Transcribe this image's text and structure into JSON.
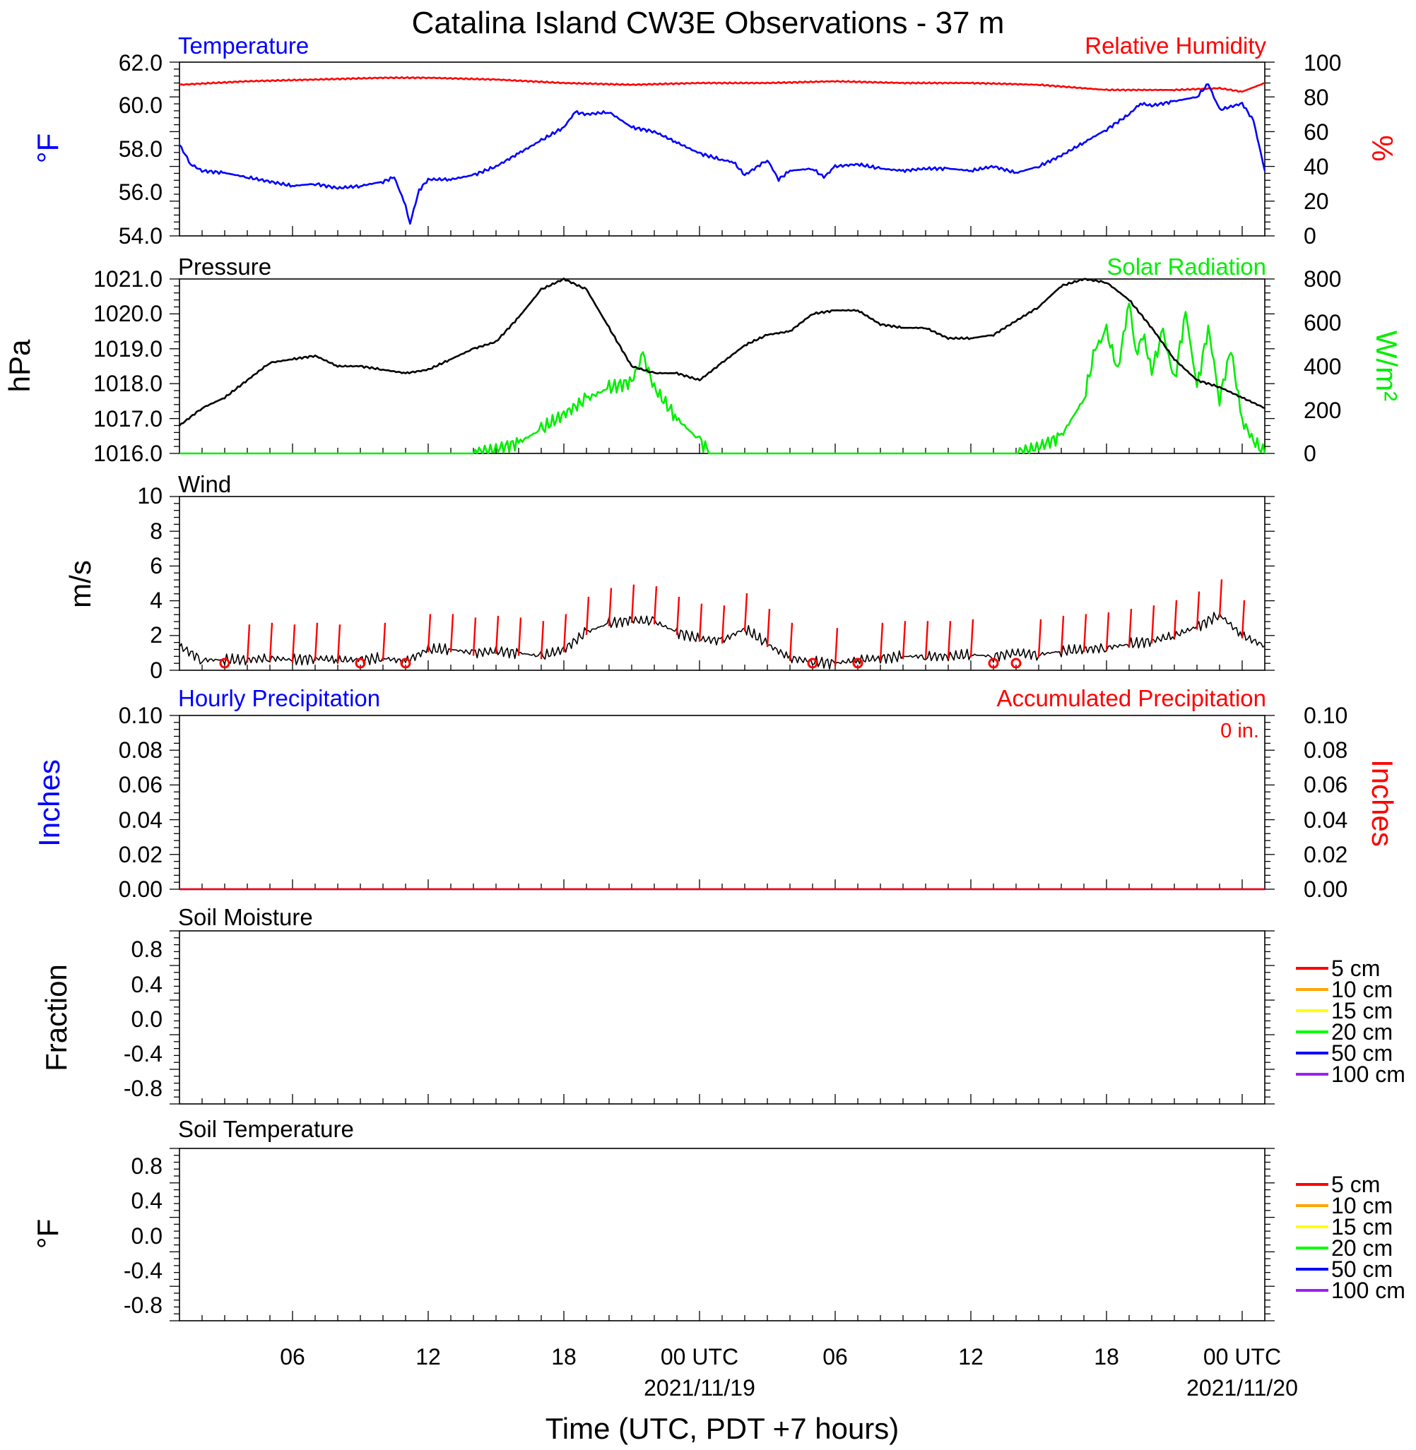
{
  "title": "Catalina Island CW3E Observations - 37 m",
  "x_axis": {
    "label": "Time (UTC, PDT +7 hours)",
    "ticks": [
      {
        "hour": 6,
        "label": "06",
        "date": ""
      },
      {
        "hour": 12,
        "label": "12",
        "date": ""
      },
      {
        "hour": 18,
        "label": "18",
        "date": ""
      },
      {
        "hour": 24,
        "label": "00 UTC",
        "date": "2021/11/19"
      },
      {
        "hour": 30,
        "label": "06",
        "date": ""
      },
      {
        "hour": 36,
        "label": "12",
        "date": ""
      },
      {
        "hour": 42,
        "label": "18",
        "date": ""
      },
      {
        "hour": 48,
        "label": "00 UTC",
        "date": "2021/11/20"
      }
    ]
  },
  "colors": {
    "temperature": "#0000ff",
    "humidity": "#ff0000",
    "pressure": "#000000",
    "solar": "#00ee00",
    "wind": "#000000",
    "barbs": "#ff0000",
    "hourly_precip": "#0000ff",
    "accum_precip": "#ff0000"
  },
  "panels": {
    "temp_rh": {
      "left_title": "Temperature",
      "right_title": "Relative Humidity",
      "left_unit": "°F",
      "right_unit": "%",
      "left_ticks": [
        "62.0",
        "60.0",
        "58.0",
        "56.0",
        "54.0"
      ],
      "right_ticks": [
        "100",
        "80",
        "60",
        "40",
        "20",
        "0"
      ]
    },
    "pressure_solar": {
      "left_title": "Pressure",
      "right_title": "Solar Radiation",
      "left_unit": "hPa",
      "right_unit": "W/m²",
      "left_ticks": [
        "1021.0",
        "1020.0",
        "1019.0",
        "1018.0",
        "1017.0",
        "1016.0"
      ],
      "right_ticks": [
        "800",
        "600",
        "400",
        "200",
        "0"
      ]
    },
    "wind": {
      "left_title": "Wind",
      "left_unit": "m/s",
      "left_ticks": [
        "10",
        "8",
        "6",
        "4",
        "2",
        "0"
      ]
    },
    "precip": {
      "left_title": "Hourly Precipitation",
      "right_title": "Accumulated Precipitation",
      "total_label": "0 in.",
      "left_unit": "Inches",
      "right_unit": "Inches",
      "left_ticks": [
        "0.10",
        "0.08",
        "0.06",
        "0.04",
        "0.02",
        "0.00"
      ],
      "right_ticks": [
        "0.10",
        "0.08",
        "0.06",
        "0.04",
        "0.02",
        "0.00"
      ]
    },
    "soil_moisture": {
      "left_title": "Soil Moisture",
      "left_unit": "Fraction",
      "left_ticks": [
        "0.8",
        "0.4",
        "0.0",
        "-0.4",
        "-0.8"
      ],
      "legend": [
        {
          "label": "5 cm",
          "color": "#ff0000"
        },
        {
          "label": "10 cm",
          "color": "#ffa500"
        },
        {
          "label": "15 cm",
          "color": "#ffff00"
        },
        {
          "label": "20 cm",
          "color": "#00ff00"
        },
        {
          "label": "50 cm",
          "color": "#0000ff"
        },
        {
          "label": "100 cm",
          "color": "#a020f0"
        }
      ]
    },
    "soil_temp": {
      "left_title": "Soil Temperature",
      "left_unit": "°F",
      "left_ticks": [
        "0.8",
        "0.4",
        "0.0",
        "-0.4",
        "-0.8"
      ],
      "legend": [
        {
          "label": "5 cm",
          "color": "#ff0000"
        },
        {
          "label": "10 cm",
          "color": "#ffa500"
        },
        {
          "label": "15 cm",
          "color": "#ffff00"
        },
        {
          "label": "20 cm",
          "color": "#00ff00"
        },
        {
          "label": "50 cm",
          "color": "#0000ff"
        },
        {
          "label": "100 cm",
          "color": "#a020f0"
        }
      ]
    }
  },
  "chart_data": {
    "type": "line",
    "x_units": "hours since 2021-11-18 00 UTC",
    "x_range": [
      1,
      49
    ],
    "series": [
      {
        "name": "Temperature",
        "axis": "°F",
        "ylim": [
          54,
          62
        ],
        "x": [
          1,
          1.5,
          2,
          3,
          4,
          5,
          6,
          7,
          8,
          9,
          10,
          10.5,
          11,
          11.2,
          11.6,
          12,
          13,
          14,
          15,
          16,
          17,
          18,
          18.5,
          19,
          20,
          21,
          22,
          23,
          24,
          25,
          25.5,
          26,
          27,
          27.5,
          28,
          29,
          29.5,
          30,
          31,
          32,
          33,
          34,
          35,
          36,
          37,
          38,
          39,
          40,
          41,
          42,
          43,
          43.5,
          44,
          45,
          46,
          46.5,
          47,
          48,
          48.5,
          49
        ],
        "y": [
          58.2,
          57.3,
          57.0,
          56.9,
          56.7,
          56.5,
          56.3,
          56.4,
          56.2,
          56.3,
          56.5,
          56.7,
          55.4,
          54.6,
          56.1,
          56.6,
          56.6,
          56.8,
          57.2,
          57.8,
          58.4,
          59.0,
          59.7,
          59.6,
          59.7,
          59.0,
          58.8,
          58.3,
          57.8,
          57.5,
          57.4,
          56.8,
          57.5,
          56.6,
          57.0,
          57.1,
          56.7,
          57.2,
          57.3,
          57.1,
          57.0,
          57.1,
          57.1,
          57.0,
          57.2,
          56.9,
          57.2,
          57.7,
          58.3,
          58.9,
          59.6,
          60.1,
          60.0,
          60.2,
          60.4,
          61.0,
          59.8,
          60.1,
          59.3,
          57.0
        ]
      },
      {
        "name": "Relative Humidity",
        "axis": "%",
        "ylim": [
          0,
          100
        ],
        "x": [
          1,
          4,
          7,
          10,
          12,
          15,
          18,
          21,
          24,
          27,
          30,
          33,
          36,
          39,
          42,
          45,
          47,
          48,
          49
        ],
        "y": [
          87,
          89,
          90,
          91,
          91,
          90,
          88,
          87,
          88,
          88,
          89,
          88,
          88,
          87,
          84,
          84,
          85,
          83,
          88
        ]
      },
      {
        "name": "Pressure",
        "axis": "hPa",
        "ylim": [
          1016,
          1021
        ],
        "x": [
          1,
          2,
          3,
          4,
          5,
          6,
          7,
          8,
          9,
          10,
          11,
          12,
          13,
          14,
          15,
          16,
          17,
          18,
          19,
          20,
          21,
          22,
          23,
          24,
          25,
          26,
          27,
          28,
          29,
          30,
          31,
          32,
          33,
          34,
          35,
          36,
          37,
          38,
          39,
          40,
          41,
          42,
          43,
          44,
          45,
          46,
          47,
          48,
          49
        ],
        "y": [
          1016.8,
          1017.3,
          1017.6,
          1018.1,
          1018.6,
          1018.7,
          1018.8,
          1018.5,
          1018.5,
          1018.4,
          1018.3,
          1018.4,
          1018.7,
          1019.0,
          1019.2,
          1019.9,
          1020.7,
          1021.0,
          1020.7,
          1019.6,
          1018.5,
          1018.3,
          1018.3,
          1018.1,
          1018.6,
          1019.1,
          1019.4,
          1019.5,
          1020.0,
          1020.1,
          1020.1,
          1019.7,
          1019.6,
          1019.6,
          1019.3,
          1019.3,
          1019.4,
          1019.8,
          1020.2,
          1020.8,
          1021.0,
          1020.9,
          1020.4,
          1019.6,
          1018.7,
          1018.1,
          1017.9,
          1017.6,
          1017.3
        ]
      },
      {
        "name": "Solar Radiation",
        "axis": "W/m²",
        "ylim": [
          0,
          800
        ],
        "x": [
          1,
          13,
          14,
          15,
          16,
          17,
          18,
          19,
          20,
          21,
          21.5,
          22,
          23,
          24,
          24.5,
          37,
          38,
          39,
          40,
          41,
          41.5,
          42,
          42.5,
          43,
          43.3,
          43.6,
          44,
          44.5,
          45,
          45.5,
          46,
          46.5,
          47,
          47.5,
          48,
          48.5,
          49
        ],
        "y": [
          0,
          0,
          0,
          20,
          50,
          110,
          180,
          250,
          300,
          330,
          450,
          300,
          160,
          60,
          0,
          0,
          0,
          30,
          80,
          250,
          480,
          560,
          380,
          700,
          450,
          550,
          380,
          560,
          330,
          650,
          300,
          580,
          250,
          480,
          150,
          60,
          0
        ]
      },
      {
        "name": "Wind",
        "axis": "m/s",
        "ylim": [
          0,
          10
        ],
        "x": [
          1,
          2,
          3,
          4,
          5,
          6,
          7,
          8,
          9,
          10,
          11,
          12,
          13,
          14,
          15,
          16,
          17,
          18,
          19,
          20,
          21,
          22,
          23,
          24,
          25,
          26,
          27,
          28,
          29,
          30,
          31,
          32,
          33,
          34,
          35,
          36,
          37,
          38,
          39,
          40,
          41,
          42,
          43,
          44,
          45,
          46,
          47,
          48,
          49
        ],
        "y": [
          1.4,
          0.6,
          0.6,
          0.6,
          0.7,
          0.6,
          0.7,
          0.6,
          0.6,
          0.7,
          0.5,
          1.2,
          1.2,
          1.0,
          1.1,
          1.0,
          0.8,
          1.2,
          2.2,
          2.7,
          2.9,
          2.8,
          2.2,
          1.8,
          1.7,
          2.4,
          1.5,
          0.7,
          0.5,
          0.4,
          0.6,
          0.7,
          0.8,
          0.8,
          0.8,
          0.9,
          0.8,
          1.0,
          0.9,
          1.1,
          1.2,
          1.3,
          1.5,
          1.7,
          2.0,
          2.5,
          3.2,
          2.0,
          1.4
        ]
      },
      {
        "name": "Hourly Precipitation",
        "axis": "Inches",
        "ylim": [
          0,
          0.1
        ],
        "x": [
          1,
          49
        ],
        "y": [
          0,
          0
        ]
      },
      {
        "name": "Accumulated Precipitation",
        "axis": "Inches",
        "ylim": [
          0,
          0.1
        ],
        "x": [
          1,
          49
        ],
        "y": [
          0,
          0
        ]
      }
    ],
    "wind_barbs_hours": [
      3,
      4,
      5,
      6,
      7,
      8,
      9,
      10,
      11,
      12,
      13,
      14,
      15,
      16,
      17,
      18,
      19,
      20,
      21,
      22,
      23,
      24,
      25,
      26,
      27,
      28,
      29,
      30,
      31,
      32,
      33,
      34,
      35,
      36,
      37,
      38,
      39,
      40,
      41,
      42,
      43,
      44,
      45,
      46,
      47,
      48
    ],
    "calm_hours": [
      3,
      9,
      11,
      29,
      31,
      37,
      38
    ]
  }
}
